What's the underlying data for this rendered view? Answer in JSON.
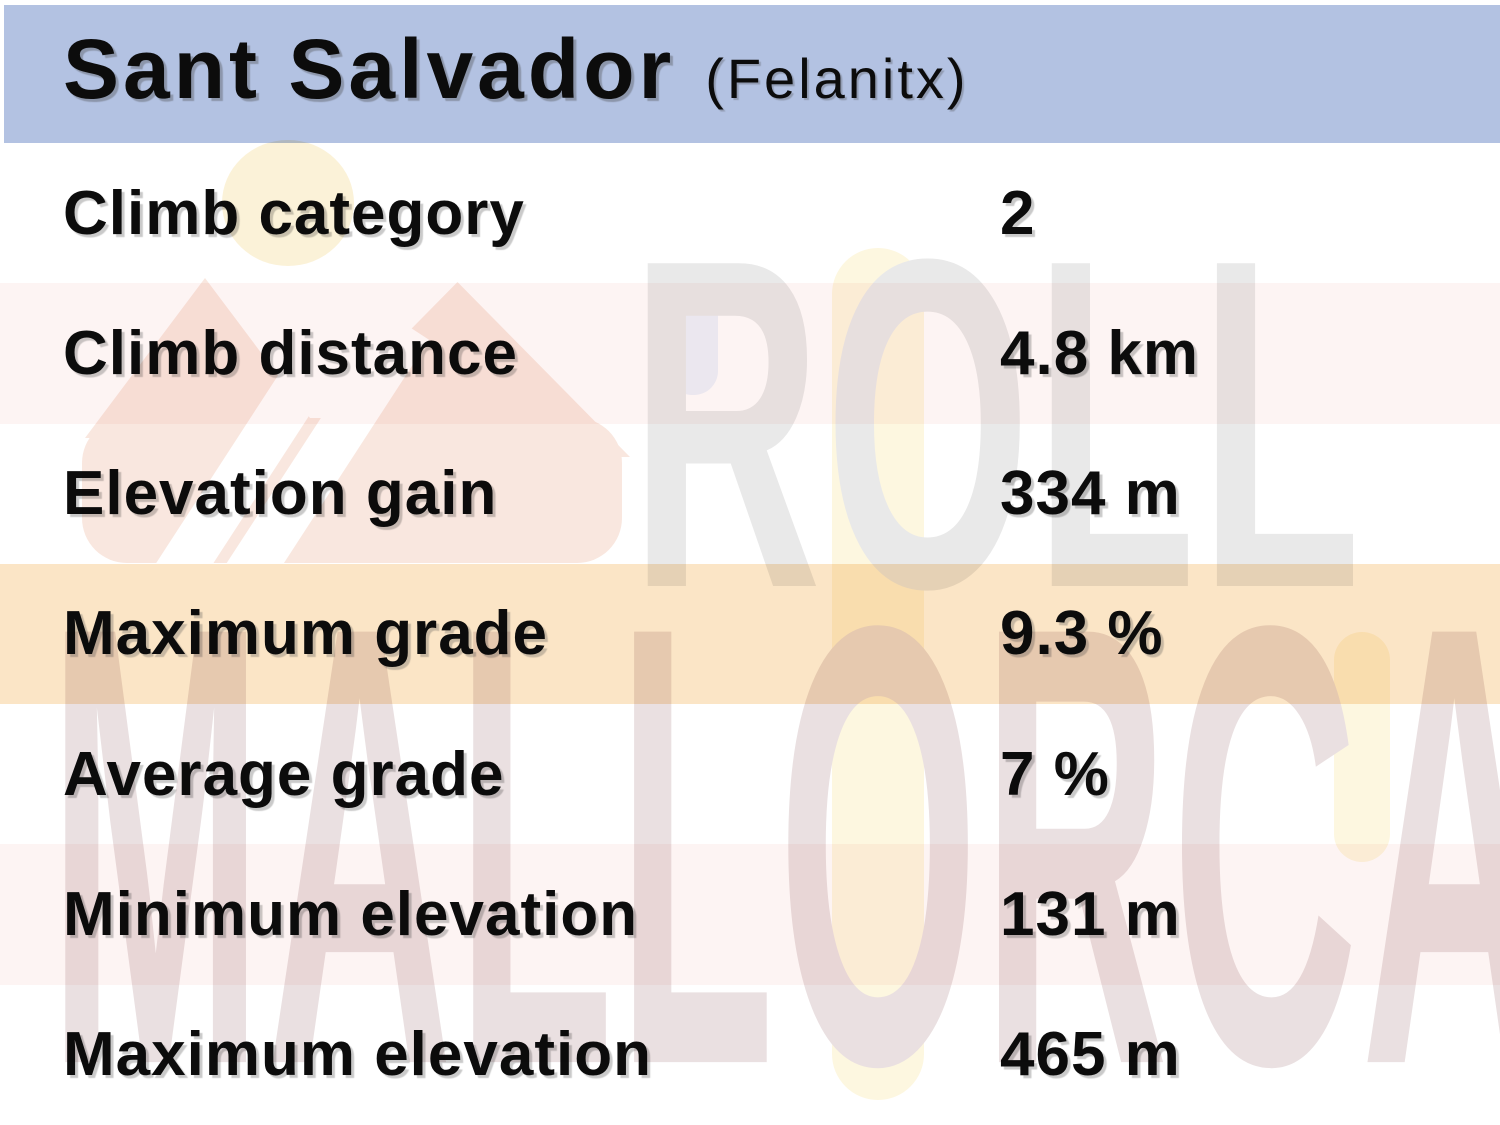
{
  "header": {
    "title": "Sant Salvador",
    "subtitle": "(Felanitx)"
  },
  "rows": [
    {
      "label": "Climb category",
      "value": "2",
      "highlight": "none"
    },
    {
      "label": "Climb distance",
      "value": "4.8 km",
      "highlight": "pink"
    },
    {
      "label": "Elevation gain",
      "value": "334 m",
      "highlight": "none"
    },
    {
      "label": "Maximum grade",
      "value": "9.3 %",
      "highlight": "orange"
    },
    {
      "label": "Average grade",
      "value": "7 %",
      "highlight": "none"
    },
    {
      "label": "Minimum elevation",
      "value": "131 m",
      "highlight": "pink"
    },
    {
      "label": "Maximum elevation",
      "value": "465 m",
      "highlight": "none"
    }
  ],
  "watermark": {
    "line1": "ROLL",
    "line2": "MALLORCA"
  },
  "colors": {
    "header_bg": "#b3c2e2",
    "row_pink": "#fdf4f3",
    "row_orange": "#fbe5c6",
    "text": "#0c0c0c",
    "watermark_gray": "#e9e9e9",
    "watermark_pink": "#eae0e1",
    "logo_peach": "#f9e7df",
    "logo_sun": "#fbf2d8",
    "logo_capsule": "#fdf7e0"
  },
  "chart_data": {
    "type": "table",
    "title": "Sant Salvador (Felanitx)",
    "categories": [
      "Climb category",
      "Climb distance",
      "Elevation gain",
      "Maximum grade",
      "Average grade",
      "Minimum elevation",
      "Maximum elevation"
    ],
    "values": [
      "2",
      "4.8 km",
      "334 m",
      "9.3 %",
      "7 %",
      "131 m",
      "465 m"
    ],
    "numeric_values": [
      2,
      4.8,
      334,
      9.3,
      7,
      131,
      465
    ],
    "units": [
      "",
      "km",
      "m",
      "%",
      "%",
      "m",
      "m"
    ],
    "highlighted_row": "Maximum grade"
  }
}
